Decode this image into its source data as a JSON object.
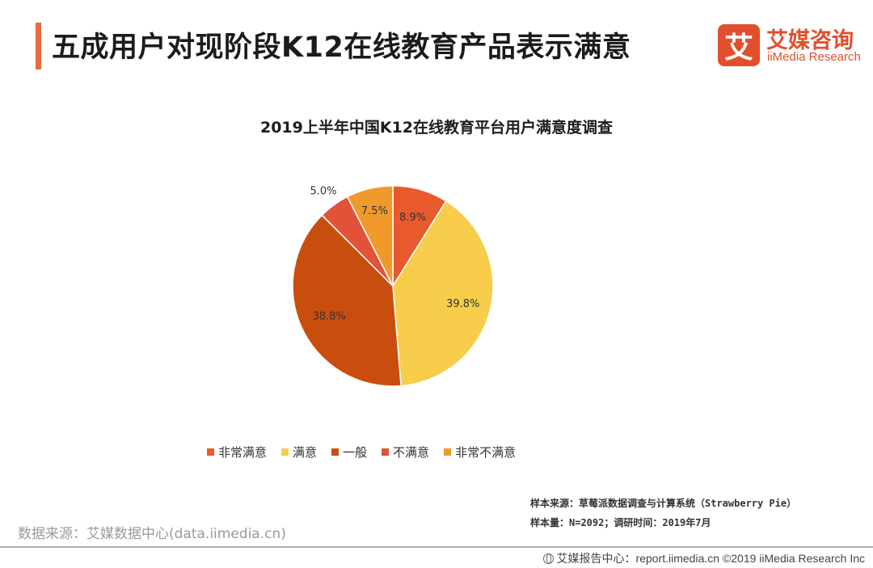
{
  "header": {
    "title": "五成用户对现阶段K12在线教育产品表示满意",
    "logo_mark": "艾",
    "logo_cn": "艾媒咨询",
    "logo_en": "iiMedia Research"
  },
  "chart_data": {
    "type": "pie",
    "title": "2019上半年中国K12在线教育平台用户满意度调查",
    "slices": [
      {
        "label": "非常满意",
        "value": 8.9,
        "display": "8.9%",
        "color": "#e85a2c"
      },
      {
        "label": "满意",
        "value": 39.8,
        "display": "39.8%",
        "color": "#f7cd4b"
      },
      {
        "label": "一般",
        "value": 38.8,
        "display": "38.8%",
        "color": "#c94e0e"
      },
      {
        "label": "不满意",
        "value": 5.0,
        "display": "5.0%",
        "color": "#e25238"
      },
      {
        "label": "非常不满意",
        "value": 7.5,
        "display": "7.5%",
        "color": "#f19a2c"
      }
    ],
    "start_angle_deg": 0,
    "direction": "clockwise",
    "legend_position": "bottom"
  },
  "notes": {
    "sample_source": "样本来源：草莓派数据调查与计算系统（Strawberry  Pie）",
    "sample_size": "样本量：N=2092；调研时间：2019年7月"
  },
  "source": "数据来源：艾媒数据中心(data.iimedia.cn)",
  "footer": "艾媒报告中心：report.iimedia.cn  ©2019  iiMedia Research  Inc"
}
